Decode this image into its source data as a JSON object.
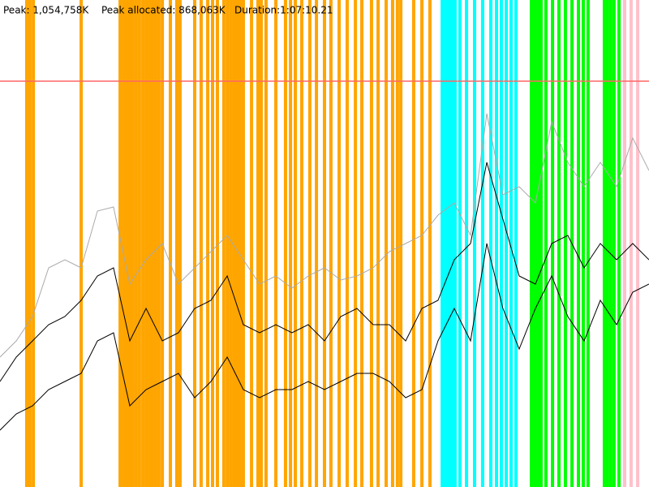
{
  "chart_data": {
    "type": "line",
    "annotations": [
      "Peak: 1,054,758K",
      "Peak allocated: 868,063K",
      "Duration:1:07:10.21"
    ],
    "peak_value": 1054758,
    "peak_color": "#ff6666",
    "xlim": [
      0,
      4030.21
    ],
    "ylim": [
      0,
      1265710
    ],
    "x": [
      0,
      101,
      202,
      302,
      403,
      504,
      605,
      705,
      806,
      907,
      1008,
      1108,
      1209,
      1310,
      1411,
      1511,
      1612,
      1713,
      1813,
      1914,
      2015,
      2116,
      2217,
      2317,
      2418,
      2519,
      2620,
      2720,
      2821,
      2922,
      3023,
      3123,
      3224,
      3325,
      3426,
      3526,
      3627,
      3728,
      3829,
      3929,
      4030
    ],
    "series": [
      {
        "color": "#aaaaaa",
        "values": [
          337520,
          379710,
          442995,
          569565,
          590660,
          569565,
          717230,
          727778,
          527375,
          590660,
          632850,
          527375,
          569565,
          611755,
          653945,
          590660,
          527375,
          548470,
          516828,
          548470,
          569565,
          537923,
          548470,
          569565,
          611755,
          632850,
          653945,
          706683,
          738325,
          653945,
          970370,
          759420,
          780515,
          738325,
          949275,
          843800,
          780515,
          843800,
          780515,
          907085,
          822705
        ]
      },
      {
        "color": "#000000",
        "values": [
          274235,
          337520,
          379710,
          421900,
          442995,
          485185,
          548470,
          569565,
          379710,
          464090,
          379710,
          400805,
          464090,
          485185,
          548470,
          421900,
          400805,
          421900,
          400805,
          421900,
          379710,
          442995,
          464090,
          421900,
          421900,
          379710,
          464090,
          485185,
          590660,
          632850,
          843800,
          696135,
          548470,
          527375,
          632850,
          653945,
          569565,
          632850,
          590660,
          632850,
          590660
        ]
      },
      {
        "color": "#000000",
        "values": [
          147665,
          189855,
          210950,
          253140,
          274235,
          295330,
          379710,
          400805,
          210950,
          253140,
          274235,
          295330,
          232045,
          274235,
          337520,
          253140,
          232045,
          253140,
          253140,
          274235,
          253140,
          274235,
          295330,
          295330,
          274235,
          232045,
          253140,
          379710,
          464090,
          379710,
          632850,
          464090,
          358615,
          464090,
          548470,
          442995,
          379710,
          485185,
          421900,
          506280,
          527375
        ]
      }
    ],
    "events": [
      {
        "color": "#ffa500",
        "x": [
          166,
          186,
          207,
          504,
          746,
          766,
          786,
          806,
          826,
          846,
          866,
          887,
          907,
          927,
          947,
          967,
          987,
          1008,
          1058,
          1098,
          1118,
          1209,
          1249,
          1290,
          1320,
          1350,
          1390,
          1411,
          1431,
          1451,
          1471,
          1491,
          1511,
          1562,
          1602,
          1622,
          1652,
          1713,
          1773,
          1804,
          1834,
          1874,
          1924,
          1965,
          2015,
          2055,
          2106,
          2156,
          2207,
          2247,
          2307,
          2348,
          2398,
          2438,
          2468,
          2489,
          2569,
          2620,
          2670
        ]
      },
      {
        "color": "#00ffff",
        "x": [
          2746,
          2766,
          2786,
          2806,
          2826,
          2856,
          2897,
          2947,
          2997,
          3048,
          3083,
          3113,
          3144,
          3174,
          3204
        ]
      },
      {
        "color": "#00ff00",
        "x": [
          3300,
          3320,
          3340,
          3360,
          3390,
          3431,
          3471,
          3511,
          3552,
          3592,
          3622,
          3652,
          3753,
          3773,
          3793,
          3813,
          3844
        ]
      },
      {
        "color": "#ffc0cb",
        "x": [
          3879,
          3919,
          3960
        ]
      }
    ]
  }
}
